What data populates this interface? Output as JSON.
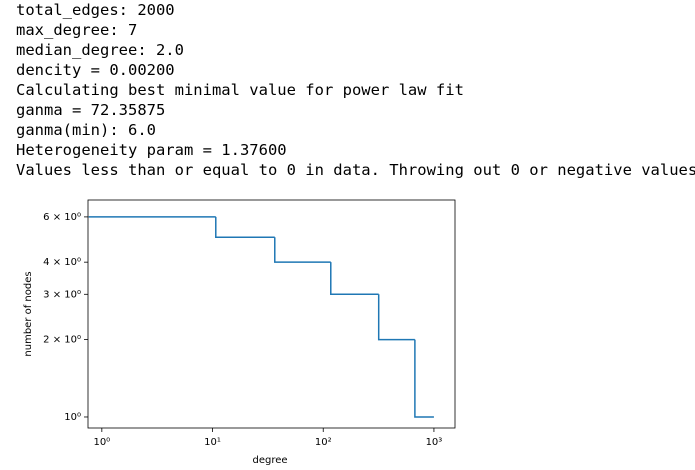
{
  "output_lines": [
    "total_edges: 2000",
    "max_degree: 7",
    "median_degree: 2.0",
    "dencity = 0.00200",
    "Calculating best minimal value for power law fit",
    "ganma = 72.35875",
    "ganma(min): 6.0",
    "Heterogeneity param = 1.37600",
    "Values less than or equal to 0 in data. Throwing out 0 or negative values"
  ],
  "chart_data": {
    "type": "step",
    "x_label": "degree",
    "y_label": "number of nodes",
    "xscale": "log",
    "yscale": "log",
    "xlim": [
      0.75,
      1550
    ],
    "ylim": [
      0.906,
      6.98
    ],
    "xticks": [
      {
        "value": 1,
        "label": "10⁰"
      },
      {
        "value": 10,
        "label": "10¹"
      },
      {
        "value": 100,
        "label": "10²"
      },
      {
        "value": 1000,
        "label": "10³"
      }
    ],
    "yticks": [
      {
        "value": 1,
        "label": "10⁰"
      },
      {
        "value": 2,
        "label": "2 × 10⁰"
      },
      {
        "value": 3,
        "label": "3 × 10⁰"
      },
      {
        "value": 4,
        "label": "4 × 10⁰"
      },
      {
        "value": 6,
        "label": "6 × 10⁰"
      }
    ],
    "series": [
      {
        "color": "#1f77b4",
        "x": [
          0.76,
          10.7,
          36.5,
          117,
          317,
          673,
          1000
        ],
        "values": [
          6,
          5,
          4,
          3,
          2,
          1,
          1
        ]
      }
    ]
  }
}
